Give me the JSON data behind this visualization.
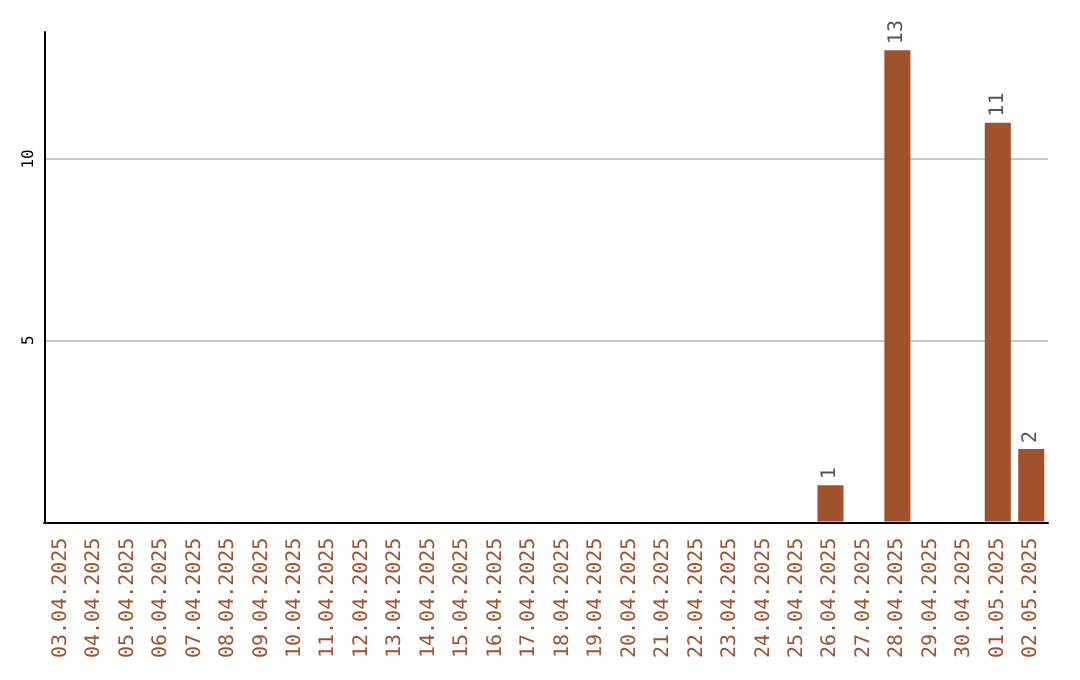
{
  "chart_data": {
    "type": "bar",
    "categories": [
      "03.04.2025",
      "04.04.2025",
      "05.04.2025",
      "06.04.2025",
      "07.04.2025",
      "08.04.2025",
      "09.04.2025",
      "10.04.2025",
      "11.04.2025",
      "12.04.2025",
      "13.04.2025",
      "14.04.2025",
      "15.04.2025",
      "16.04.2025",
      "17.04.2025",
      "18.04.2025",
      "19.04.2025",
      "20.04.2025",
      "21.04.2025",
      "22.04.2025",
      "23.04.2025",
      "24.04.2025",
      "25.04.2025",
      "26.04.2025",
      "27.04.2025",
      "28.04.2025",
      "29.04.2025",
      "30.04.2025",
      "01.05.2025",
      "02.05.2025"
    ],
    "values": [
      0,
      0,
      0,
      0,
      0,
      0,
      0,
      0,
      0,
      0,
      0,
      0,
      0,
      0,
      0,
      0,
      0,
      0,
      0,
      0,
      0,
      0,
      0,
      1,
      0,
      13,
      0,
      0,
      11,
      2
    ],
    "value_labels": [
      null,
      null,
      null,
      null,
      null,
      null,
      null,
      null,
      null,
      null,
      null,
      null,
      null,
      null,
      null,
      null,
      null,
      null,
      null,
      null,
      null,
      null,
      null,
      "1",
      null,
      "13",
      null,
      null,
      "11",
      "2"
    ],
    "color": "#a0522d",
    "ylim": [
      0,
      13.5
    ],
    "yticks": [
      5,
      10
    ],
    "grid": "y"
  }
}
